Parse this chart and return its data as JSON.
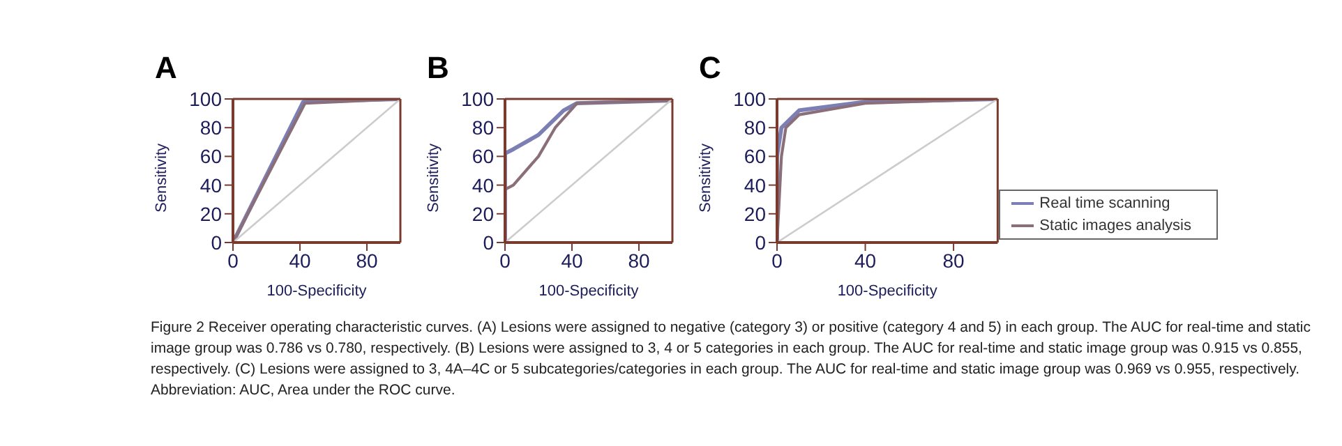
{
  "chart_data": [
    {
      "type": "line",
      "title": "A",
      "xlabel": "100-Specificity",
      "ylabel": "Sensitivity",
      "xlim": [
        0,
        100
      ],
      "ylim": [
        0,
        100
      ],
      "xticks": [
        0,
        40,
        80
      ],
      "yticks": [
        0,
        20,
        40,
        60,
        80,
        100
      ],
      "series": [
        {
          "color": "#7c7fb3",
          "x": [
            0,
            42,
            100
          ],
          "values": [
            0,
            98,
            100
          ]
        },
        {
          "color": "#8a6f7a",
          "x": [
            0,
            43,
            100
          ],
          "values": [
            0,
            97,
            100
          ]
        },
        {
          "color": "#cccccc",
          "x": [
            0,
            100
          ],
          "values": [
            0,
            100
          ]
        }
      ]
    },
    {
      "type": "line",
      "title": "B",
      "xlabel": "100-Specificity",
      "ylabel": "Sensitivity",
      "xlim": [
        0,
        100
      ],
      "ylim": [
        0,
        100
      ],
      "xticks": [
        0,
        40,
        80
      ],
      "yticks": [
        0,
        20,
        40,
        60,
        80,
        100
      ],
      "series": [
        {
          "color": "#7c7fb3",
          "x": [
            0,
            0,
            5,
            20,
            35,
            43,
            100
          ],
          "values": [
            0,
            62,
            65,
            75,
            92,
            97,
            99
          ]
        },
        {
          "color": "#8a6f7a",
          "x": [
            0,
            0,
            5,
            20,
            30,
            40,
            43,
            100
          ],
          "values": [
            0,
            37,
            40,
            60,
            80,
            93,
            97,
            99
          ]
        },
        {
          "color": "#cccccc",
          "x": [
            0,
            100
          ],
          "values": [
            0,
            100
          ]
        }
      ]
    },
    {
      "type": "line",
      "title": "C",
      "xlabel": "100-Specificity",
      "ylabel": "Sensitivity",
      "xlim": [
        0,
        100
      ],
      "ylim": [
        0,
        100
      ],
      "xticks": [
        0,
        40,
        80
      ],
      "yticks": [
        0,
        20,
        40,
        60,
        80,
        100
      ],
      "legend": "right",
      "series": [
        {
          "name": "Real time scanning",
          "color": "#7c7fb3",
          "x": [
            0,
            0,
            2,
            10,
            40,
            100
          ],
          "values": [
            0,
            60,
            80,
            92,
            98,
            100
          ]
        },
        {
          "name": "Static images analysis",
          "color": "#8a6f7a",
          "x": [
            0,
            2,
            4,
            10,
            40,
            100
          ],
          "values": [
            0,
            60,
            80,
            89,
            97,
            100
          ]
        },
        {
          "color": "#cccccc",
          "x": [
            0,
            100
          ],
          "values": [
            0,
            100
          ]
        }
      ],
      "annotations": [
        "Figure 2 Receiver operating characteristic curves. (A) Lesions were assigned to negative (category 3) or positive (category 4 and 5) in each group. The AUC for real-time and static image group was 0.786 vs 0.780, respectively. (B) Lesions were assigned to 3, 4 or 5 categories in each group. The AUC for real-time and static image group was 0.915 vs 0.855, respectively. (C) Lesions were assigned to 3, 4A–4C or 5 subcategories/categories in each group. The AUC for real-time and static image group was 0.969 vs 0.955, respectively.",
        "Abbreviation: AUC, Area under the ROC curve."
      ]
    }
  ]
}
